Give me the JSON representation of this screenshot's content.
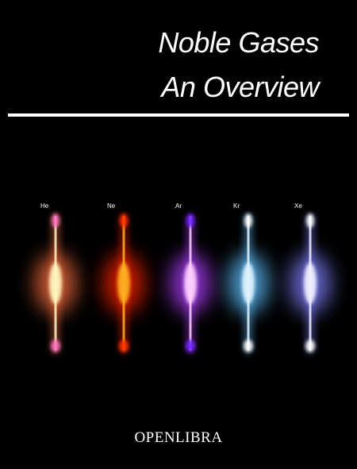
{
  "title": {
    "line1": "Noble Gases",
    "line2": "An Overview"
  },
  "publisher": "OPENLIBRA",
  "elements": [
    {
      "symbol": "He",
      "color": "#ff7040",
      "core": "#fff6c0",
      "cap": "#ff70c0"
    },
    {
      "symbol": "Ne",
      "color": "#ff2000",
      "core": "#ffb020",
      "cap": "#ff3000"
    },
    {
      "symbol": "Ar",
      "color": "#b040ff",
      "core": "#ffd0ff",
      "cap": "#7020ff"
    },
    {
      "symbol": "Kr",
      "color": "#60c0ff",
      "core": "#e0f4ff",
      "cap": "#ffffff"
    },
    {
      "symbol": "Xe",
      "color": "#8080ff",
      "core": "#f0f0ff",
      "cap": "#ffffff"
    }
  ]
}
